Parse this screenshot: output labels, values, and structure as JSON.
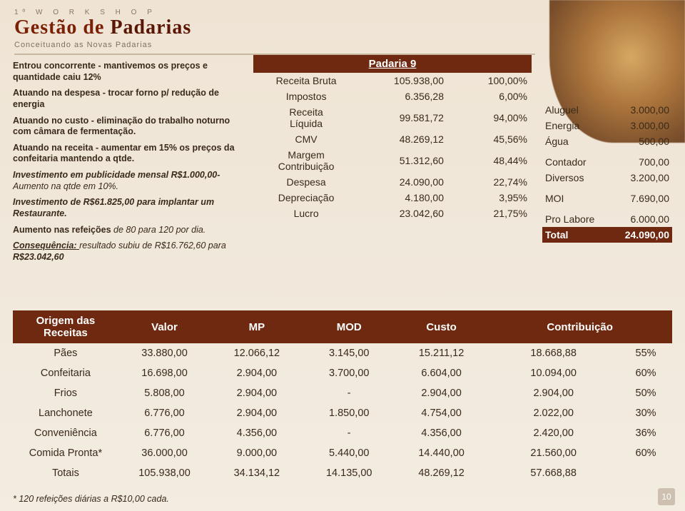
{
  "header": {
    "workshop": "1º  W O R K S H O P",
    "title_a": "Gestão de ",
    "title_b": "Padarias",
    "subtitle": "Conceituando as Novas Padarias"
  },
  "left": {
    "p1": "Entrou concorrente - mantivemos os preços e quantidade caiu 12%",
    "p2": "Atuando na despesa - trocar forno p/ redução de energia",
    "p3": "Atuando no custo - eliminação do trabalho noturno com câmara de fermentação.",
    "p4": "Atuando na receita - aumentar em 15% os preços da confeitaria mantendo a qtde.",
    "p5a": "Investimento em publicidade mensal R$1.000,00-",
    "p5b": "Aumento na qtde em 10%.",
    "p6": "Investimento de R$61.825,00 para implantar um Restaurante.",
    "p7a": "Aumento nas refeições ",
    "p7b": "de 80 para 120 por dia.",
    "p8a": "Consequência: ",
    "p8b": "resultado subiu de R$16.762,60 para ",
    "p8c": "R$23.042,60"
  },
  "mid": {
    "title": "Padaria 9",
    "rows": [
      {
        "l": "Receita Bruta",
        "v": "105.938,00",
        "p": "100,00%"
      },
      {
        "l": "Impostos",
        "v": "6.356,28",
        "p": "6,00%"
      },
      {
        "l": "Receita Líquida",
        "v": "99.581,72",
        "p": "94,00%"
      },
      {
        "l": "CMV",
        "v": "48.269,12",
        "p": "45,56%"
      },
      {
        "l": "Margem Contribuição",
        "v": "51.312,60",
        "p": "48,44%"
      },
      {
        "l": "Despesa",
        "v": "24.090,00",
        "p": "22,74%"
      },
      {
        "l": "Depreciação",
        "v": "4.180,00",
        "p": "3,95%"
      },
      {
        "l": "Lucro",
        "v": "23.042,60",
        "p": "21,75%"
      }
    ]
  },
  "right": {
    "rows": [
      {
        "l": "Aluguel",
        "v": "3.000,00"
      },
      {
        "l": "Energia",
        "v": "3.000,00"
      },
      {
        "l": "Água",
        "v": "500,00"
      },
      {
        "l": "Contador",
        "v": "700,00"
      },
      {
        "l": "Diversos",
        "v": "3.200,00"
      },
      {
        "l": "MOI",
        "v": "7.690,00"
      },
      {
        "l": "Pro Labore",
        "v": "6.000,00"
      }
    ],
    "total_l": "Total",
    "total_v": "24.090,00"
  },
  "bottom": {
    "headers": [
      "Origem das Receitas",
      "Valor",
      "MP",
      "MOD",
      "Custo",
      "Contribuição",
      ""
    ],
    "rows": [
      {
        "c": [
          "Pães",
          "33.880,00",
          "12.066,12",
          "3.145,00",
          "15.211,12",
          "18.668,88",
          "55%"
        ]
      },
      {
        "c": [
          "Confeitaria",
          "16.698,00",
          "2.904,00",
          "3.700,00",
          "6.604,00",
          "10.094,00",
          "60%"
        ]
      },
      {
        "c": [
          "Frios",
          "5.808,00",
          "2.904,00",
          "-",
          "2.904,00",
          "2.904,00",
          "50%"
        ]
      },
      {
        "c": [
          "Lanchonete",
          "6.776,00",
          "2.904,00",
          "1.850,00",
          "4.754,00",
          "2.022,00",
          "30%"
        ]
      },
      {
        "c": [
          "Conveniência",
          "6.776,00",
          "4.356,00",
          "-",
          "4.356,00",
          "2.420,00",
          "36%"
        ]
      },
      {
        "c": [
          "Comida Pronta*",
          "36.000,00",
          "9.000,00",
          "5.440,00",
          "14.440,00",
          "21.560,00",
          "60%"
        ]
      },
      {
        "c": [
          "Totais",
          "105.938,00",
          "34.134,12",
          "14.135,00",
          "48.269,12",
          "57.668,88",
          ""
        ]
      }
    ]
  },
  "footnote": "* 120 refeições diárias a R$10,00 cada.",
  "pagenum": "10",
  "colors": {
    "brand": "#7b1f05",
    "header_bg": "#6e2910",
    "text": "#3a2a1a"
  }
}
